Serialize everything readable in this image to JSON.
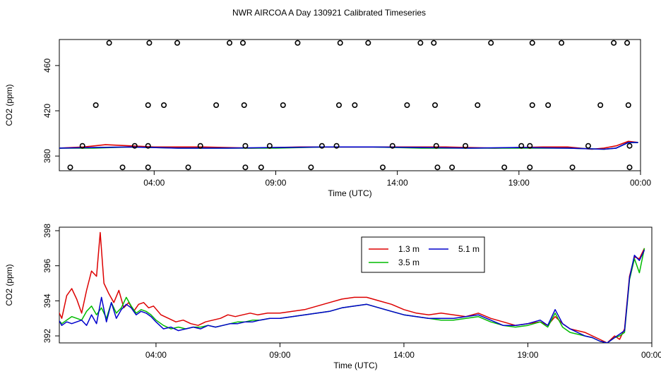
{
  "title": "NWR AIRCOA A  Day 130921  Calibrated Timeseries",
  "chart_data": [
    {
      "type": "scatter",
      "xlabel": "Time (UTC)",
      "ylabel": "CO2 (ppm)",
      "xlim": [
        0.1,
        24.0
      ],
      "ylim": [
        367,
        483
      ],
      "x_ticks": [
        4,
        9,
        14,
        19,
        24
      ],
      "x_tick_labels": [
        "04:00",
        "09:00",
        "14:00",
        "19:00",
        "00:00"
      ],
      "y_ticks": [
        380,
        420,
        460
      ],
      "y_tick_labels": [
        "380",
        "420",
        "460"
      ],
      "points": [
        {
          "x": 2.15,
          "y": 480
        },
        {
          "x": 3.8,
          "y": 480
        },
        {
          "x": 4.95,
          "y": 480
        },
        {
          "x": 7.1,
          "y": 480
        },
        {
          "x": 7.65,
          "y": 480
        },
        {
          "x": 9.9,
          "y": 480
        },
        {
          "x": 11.65,
          "y": 480
        },
        {
          "x": 12.8,
          "y": 480
        },
        {
          "x": 14.95,
          "y": 480
        },
        {
          "x": 15.5,
          "y": 480
        },
        {
          "x": 17.85,
          "y": 480
        },
        {
          "x": 19.55,
          "y": 480
        },
        {
          "x": 20.75,
          "y": 480
        },
        {
          "x": 22.9,
          "y": 480
        },
        {
          "x": 23.45,
          "y": 480
        },
        {
          "x": 1.6,
          "y": 425
        },
        {
          "x": 3.75,
          "y": 425
        },
        {
          "x": 4.4,
          "y": 425
        },
        {
          "x": 6.55,
          "y": 425
        },
        {
          "x": 7.7,
          "y": 425
        },
        {
          "x": 9.3,
          "y": 425
        },
        {
          "x": 11.6,
          "y": 425
        },
        {
          "x": 12.25,
          "y": 425
        },
        {
          "x": 14.4,
          "y": 425
        },
        {
          "x": 15.55,
          "y": 425
        },
        {
          "x": 17.3,
          "y": 425
        },
        {
          "x": 19.55,
          "y": 425
        },
        {
          "x": 20.2,
          "y": 425
        },
        {
          "x": 22.35,
          "y": 425
        },
        {
          "x": 23.5,
          "y": 425
        },
        {
          "x": 1.05,
          "y": 389
        },
        {
          "x": 3.2,
          "y": 389
        },
        {
          "x": 3.75,
          "y": 389
        },
        {
          "x": 5.9,
          "y": 389
        },
        {
          "x": 7.75,
          "y": 389
        },
        {
          "x": 8.75,
          "y": 389
        },
        {
          "x": 10.9,
          "y": 389
        },
        {
          "x": 11.5,
          "y": 389
        },
        {
          "x": 13.8,
          "y": 389
        },
        {
          "x": 15.6,
          "y": 389
        },
        {
          "x": 16.8,
          "y": 389
        },
        {
          "x": 19.1,
          "y": 389
        },
        {
          "x": 19.45,
          "y": 389
        },
        {
          "x": 21.85,
          "y": 389
        },
        {
          "x": 23.55,
          "y": 389
        },
        {
          "x": 0.55,
          "y": 370
        },
        {
          "x": 2.7,
          "y": 370
        },
        {
          "x": 3.75,
          "y": 370
        },
        {
          "x": 5.4,
          "y": 370
        },
        {
          "x": 7.75,
          "y": 370
        },
        {
          "x": 8.4,
          "y": 370
        },
        {
          "x": 10.45,
          "y": 370
        },
        {
          "x": 13.4,
          "y": 370
        },
        {
          "x": 15.65,
          "y": 370
        },
        {
          "x": 16.25,
          "y": 370
        },
        {
          "x": 18.4,
          "y": 370
        },
        {
          "x": 19.45,
          "y": 370
        },
        {
          "x": 21.2,
          "y": 370
        },
        {
          "x": 23.55,
          "y": 370
        }
      ],
      "series": [
        {
          "name": "1.3 m",
          "color": "#dd0000",
          "x": [
            0.1,
            1.1,
            2.0,
            3.0,
            4.0,
            6.0,
            8.0,
            10.0,
            12.0,
            14.0,
            16.0,
            18.0,
            20.0,
            21.0,
            22.0,
            22.5,
            23.0,
            23.5,
            23.9
          ],
          "y": [
            387,
            388,
            390,
            389,
            388,
            388,
            387,
            388,
            388,
            388,
            388,
            387,
            388,
            388,
            386,
            387,
            389,
            393,
            392
          ]
        },
        {
          "x": [
            0.1,
            1.5,
            3.0,
            5.0,
            7.0,
            9.0,
            11.0,
            13.0,
            15.0,
            17.0,
            19.0,
            21.0,
            22.5,
            23.0,
            23.5,
            23.9
          ],
          "y": [
            387,
            387,
            388,
            387,
            387,
            387,
            388,
            388,
            387,
            387,
            387,
            387,
            386,
            387,
            392,
            392
          ],
          "name": "3.5 m",
          "color": "#00bb00"
        },
        {
          "x": [
            0.1,
            1.5,
            3.0,
            5.0,
            7.0,
            9.0,
            11.0,
            13.0,
            15.0,
            17.0,
            19.0,
            21.0,
            22.5,
            23.0,
            23.5,
            23.9
          ],
          "y": [
            387,
            387.5,
            388,
            387,
            387,
            387.5,
            388,
            388,
            387.5,
            387,
            387.5,
            387,
            386,
            387,
            392,
            392
          ],
          "name": "5.1 m",
          "color": "#0000cc"
        }
      ]
    },
    {
      "type": "line",
      "xlabel": "Time (UTC)",
      "ylabel": "CO2 (ppm)",
      "xlim": [
        0.1,
        24.0
      ],
      "ylim": [
        391.6,
        398.2
      ],
      "x_ticks": [
        4,
        9,
        14,
        19,
        24
      ],
      "x_tick_labels": [
        "04:00",
        "09:00",
        "14:00",
        "19:00",
        "00:00"
      ],
      "y_ticks": [
        392,
        394,
        396,
        398
      ],
      "y_tick_labels": [
        "392",
        "394",
        "396",
        "398"
      ],
      "legend": {
        "position": "top-right",
        "entries": [
          "1.3 m",
          "3.5 m",
          "5.1 m"
        ]
      },
      "series": [
        {
          "name": "1.3 m",
          "color": "#dd0000",
          "x": [
            0.0,
            0.2,
            0.4,
            0.6,
            0.8,
            1.0,
            1.2,
            1.4,
            1.6,
            1.75,
            1.9,
            2.1,
            2.3,
            2.5,
            2.7,
            2.9,
            3.1,
            3.3,
            3.5,
            3.7,
            3.9,
            4.2,
            4.5,
            4.8,
            5.1,
            5.4,
            5.7,
            6.0,
            6.3,
            6.6,
            6.9,
            7.2,
            7.5,
            7.8,
            8.1,
            8.5,
            9.0,
            9.5,
            10.0,
            10.5,
            11.0,
            11.5,
            12.0,
            12.5,
            13.0,
            13.5,
            14.0,
            14.5,
            15.0,
            15.5,
            16.0,
            16.5,
            17.0,
            17.5,
            18.0,
            18.5,
            19.0,
            19.5,
            19.8,
            20.1,
            20.4,
            20.7,
            21.0,
            21.3,
            21.6,
            21.9,
            22.2,
            22.5,
            22.7,
            22.9,
            23.1,
            23.3,
            23.5,
            23.7
          ],
          "y": [
            393.6,
            393.0,
            394.3,
            394.7,
            394.1,
            393.3,
            394.6,
            395.7,
            395.4,
            397.9,
            395.0,
            394.4,
            393.9,
            394.6,
            393.6,
            393.9,
            393.4,
            393.8,
            393.9,
            393.6,
            393.7,
            393.2,
            393.0,
            392.8,
            392.9,
            392.7,
            392.6,
            392.8,
            392.9,
            393.0,
            393.2,
            393.1,
            393.2,
            393.3,
            393.2,
            393.3,
            393.3,
            393.4,
            393.5,
            393.7,
            393.9,
            394.1,
            394.2,
            394.2,
            394.0,
            393.8,
            393.5,
            393.3,
            393.2,
            393.3,
            393.2,
            393.1,
            393.3,
            393.0,
            392.8,
            392.6,
            392.7,
            392.8,
            392.6,
            393.1,
            392.7,
            392.4,
            392.3,
            392.2,
            392.0,
            391.8,
            391.6,
            392.0,
            391.8,
            392.4,
            395.4,
            396.5,
            396.4,
            397.0
          ]
        },
        {
          "name": "3.5 m",
          "color": "#00bb00",
          "x": [
            0.0,
            0.2,
            0.4,
            0.6,
            0.8,
            1.0,
            1.2,
            1.4,
            1.6,
            1.8,
            2.0,
            2.2,
            2.4,
            2.6,
            2.8,
            3.0,
            3.2,
            3.4,
            3.6,
            3.8,
            4.0,
            4.3,
            4.6,
            4.9,
            5.2,
            5.5,
            5.8,
            6.1,
            6.4,
            6.7,
            7.0,
            7.3,
            7.6,
            7.9,
            8.2,
            8.6,
            9.0,
            9.5,
            10.0,
            10.5,
            11.0,
            11.5,
            12.0,
            12.5,
            13.0,
            13.5,
            14.0,
            14.5,
            15.0,
            15.5,
            16.0,
            16.5,
            17.0,
            17.5,
            18.0,
            18.5,
            19.0,
            19.5,
            19.8,
            20.1,
            20.4,
            20.7,
            21.0,
            21.3,
            21.6,
            21.9,
            22.2,
            22.5,
            22.7,
            22.9,
            23.1,
            23.3,
            23.5,
            23.7
          ],
          "y": [
            393.0,
            392.7,
            392.9,
            393.1,
            393.0,
            392.9,
            393.4,
            393.7,
            393.2,
            393.6,
            393.0,
            393.9,
            393.3,
            393.6,
            394.2,
            393.7,
            393.3,
            393.5,
            393.4,
            393.2,
            392.9,
            392.6,
            392.4,
            392.5,
            392.4,
            392.5,
            392.5,
            392.6,
            392.5,
            392.6,
            392.7,
            392.8,
            392.8,
            392.9,
            392.9,
            393.0,
            393.0,
            393.1,
            393.2,
            393.3,
            393.4,
            393.6,
            393.7,
            393.8,
            393.6,
            393.4,
            393.2,
            393.1,
            393.0,
            392.9,
            392.9,
            393.0,
            393.1,
            392.8,
            392.6,
            392.5,
            392.6,
            392.8,
            392.5,
            393.3,
            392.5,
            392.2,
            392.1,
            392.0,
            391.9,
            391.7,
            391.6,
            391.9,
            392.0,
            392.2,
            395.2,
            396.4,
            395.6,
            397.0
          ]
        },
        {
          "name": "5.1 m",
          "color": "#0000cc",
          "x": [
            0.0,
            0.2,
            0.4,
            0.6,
            0.8,
            1.0,
            1.2,
            1.4,
            1.6,
            1.8,
            2.0,
            2.2,
            2.4,
            2.6,
            2.8,
            3.0,
            3.2,
            3.4,
            3.6,
            3.8,
            4.0,
            4.3,
            4.6,
            4.9,
            5.2,
            5.5,
            5.8,
            6.1,
            6.4,
            6.7,
            7.0,
            7.3,
            7.6,
            7.9,
            8.2,
            8.6,
            9.0,
            9.5,
            10.0,
            10.5,
            11.0,
            11.5,
            12.0,
            12.5,
            13.0,
            13.5,
            14.0,
            14.5,
            15.0,
            15.5,
            16.0,
            16.5,
            17.0,
            17.5,
            18.0,
            18.5,
            19.0,
            19.5,
            19.8,
            20.1,
            20.4,
            20.7,
            21.0,
            21.3,
            21.6,
            21.9,
            22.2,
            22.5,
            22.7,
            22.9,
            23.1,
            23.3,
            23.5,
            23.7
          ],
          "y": [
            393.1,
            392.6,
            392.8,
            392.7,
            392.8,
            392.9,
            392.6,
            393.2,
            392.7,
            394.2,
            392.8,
            393.9,
            393.0,
            393.5,
            393.8,
            393.6,
            393.2,
            393.4,
            393.3,
            393.1,
            392.8,
            392.4,
            392.5,
            392.3,
            392.4,
            392.5,
            392.4,
            392.6,
            392.5,
            392.6,
            392.7,
            392.7,
            392.8,
            392.8,
            392.9,
            393.0,
            393.0,
            393.1,
            393.2,
            393.3,
            393.4,
            393.6,
            393.7,
            393.8,
            393.6,
            393.4,
            393.2,
            393.1,
            393.0,
            393.0,
            393.0,
            393.1,
            393.2,
            392.9,
            392.6,
            392.6,
            392.7,
            392.9,
            392.6,
            393.5,
            392.7,
            392.4,
            392.2,
            392.0,
            391.9,
            391.7,
            391.6,
            391.9,
            392.1,
            392.3,
            395.3,
            396.6,
            396.3,
            396.9
          ]
        }
      ]
    }
  ]
}
